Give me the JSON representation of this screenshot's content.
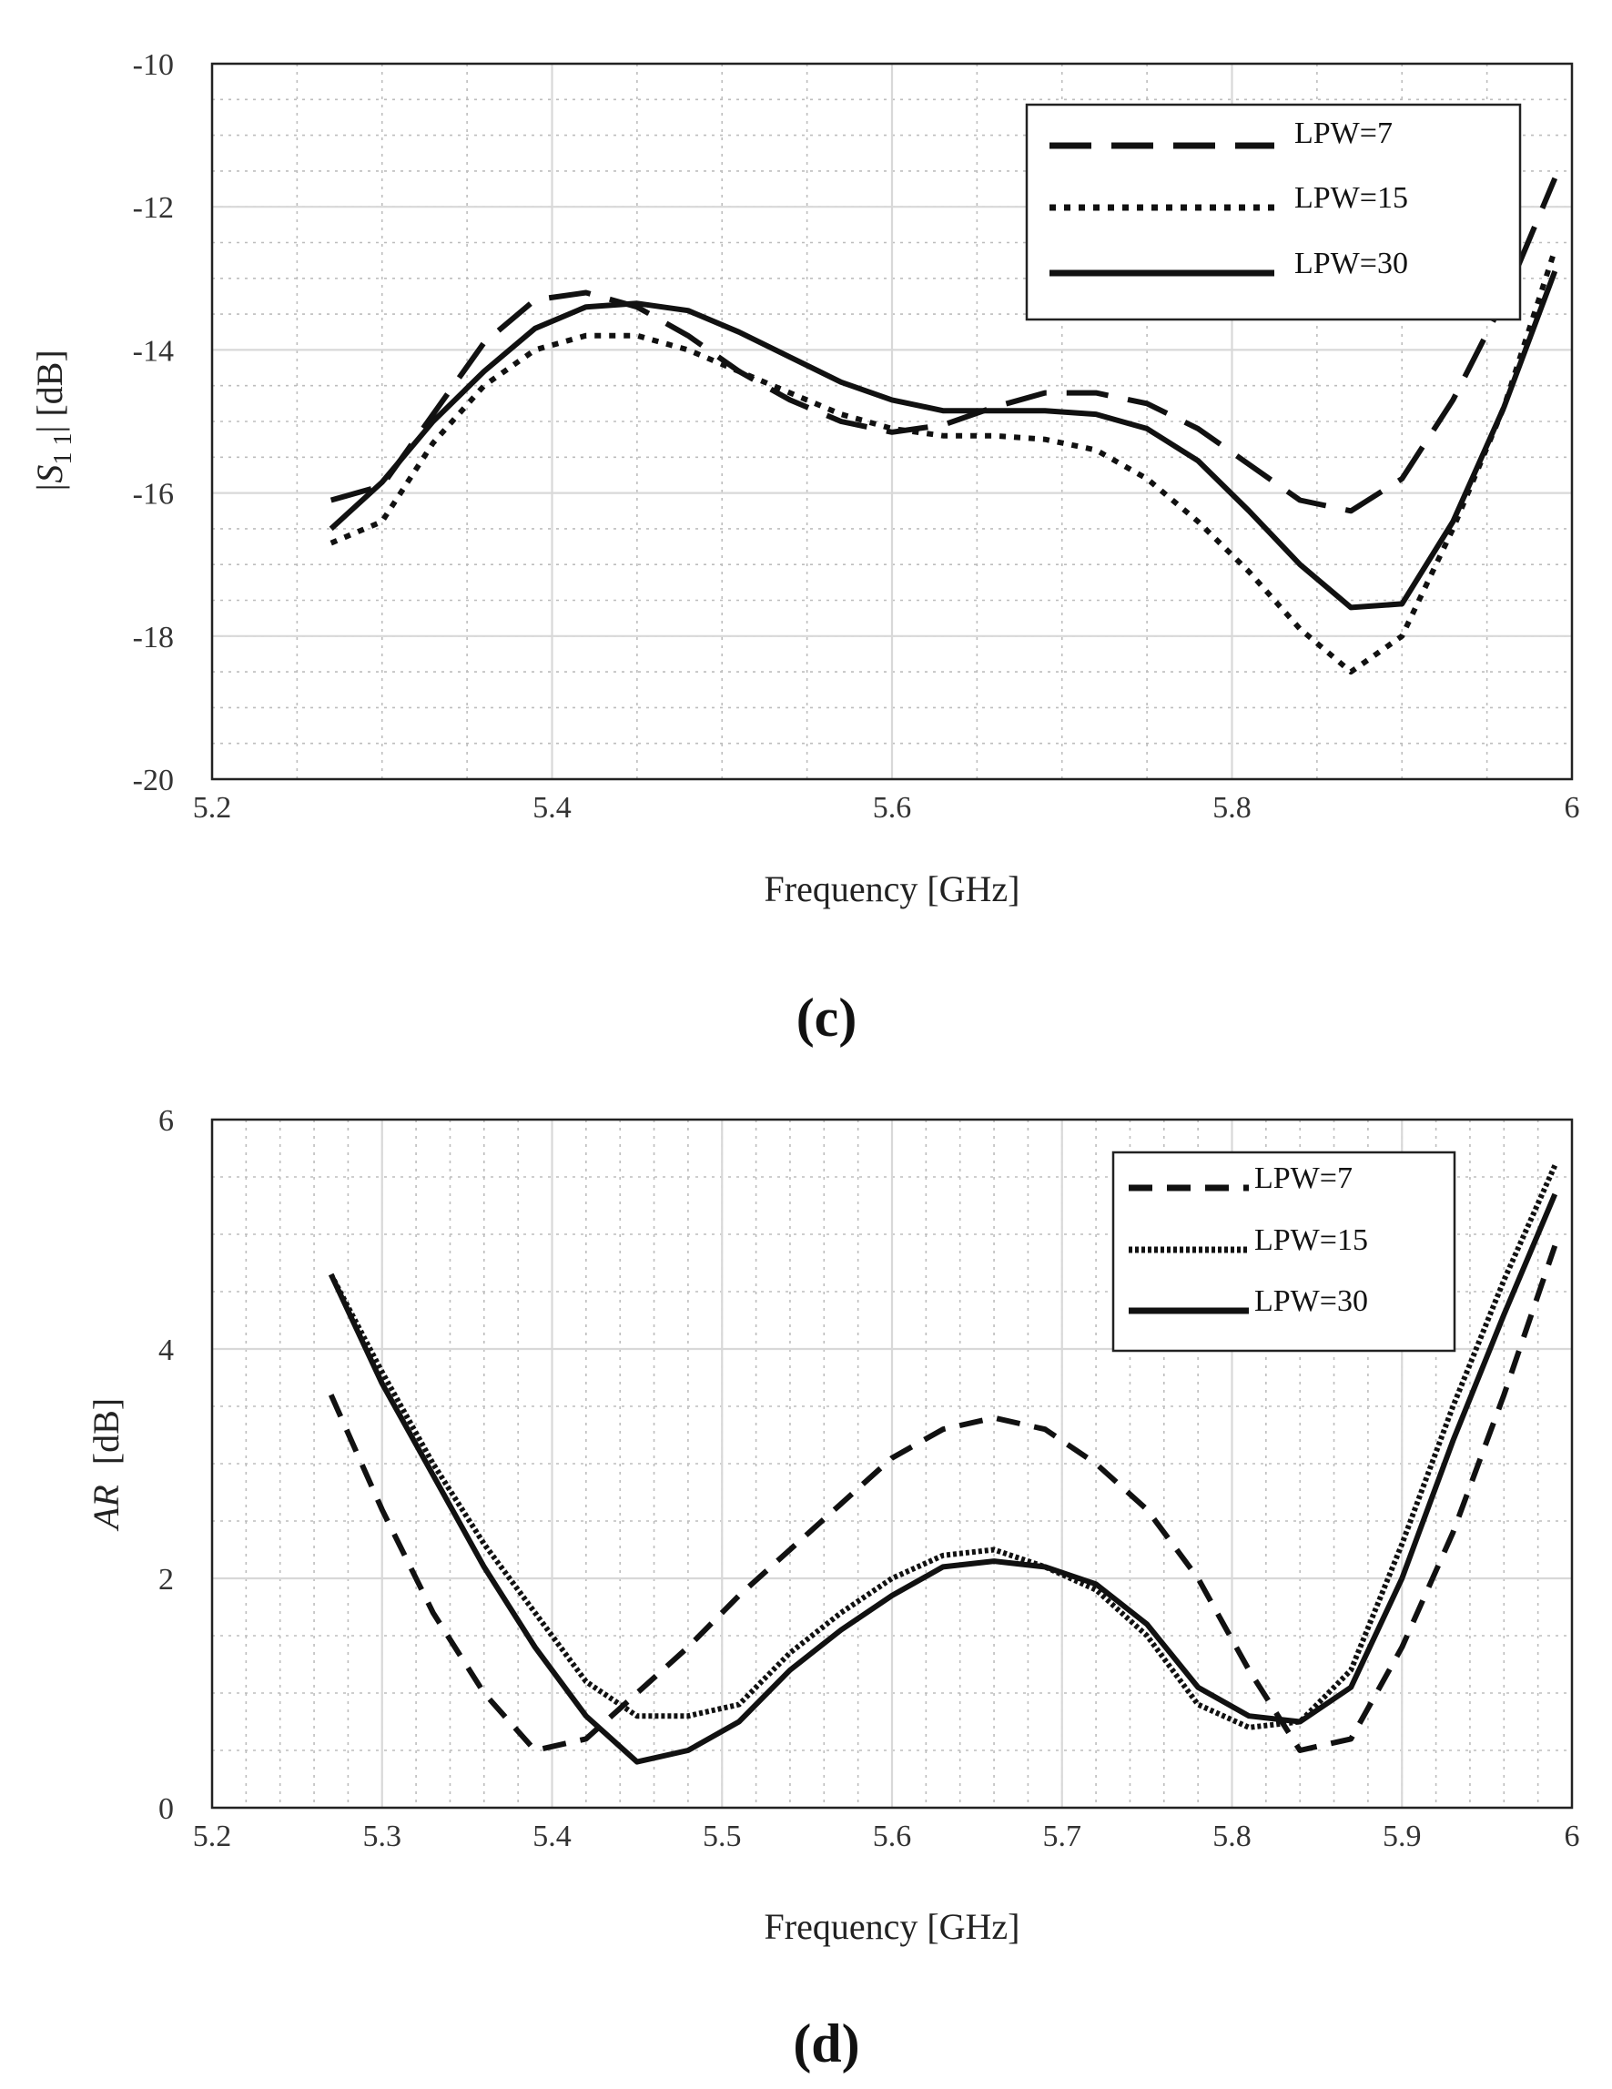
{
  "chart_data": [
    {
      "type": "line",
      "panel_label": "(c)",
      "xlabel": "Frequency [GHz]",
      "ylabel": "|S",
      "ylabel_sub": "1 1",
      "ylabel_tail": "| [dB]",
      "xlim": [
        5.2,
        6.0
      ],
      "ylim": [
        -20,
        -10
      ],
      "xticks": [
        5.2,
        5.4,
        5.6,
        5.8,
        6.0
      ],
      "xtick_labels": [
        "5.2",
        "5.4",
        "5.6",
        "5.8",
        "6"
      ],
      "xminor_step": 0.05,
      "yticks": [
        -20,
        -18,
        -16,
        -14,
        -12,
        -10
      ],
      "ytick_labels": [
        "-20",
        "-18",
        "-16",
        "-14",
        "-12",
        "-10"
      ],
      "yminor_step": 0.5,
      "grid": true,
      "legend_position": "top-right",
      "series": [
        {
          "name": "LPW=7",
          "style": "dashed",
          "x": [
            5.27,
            5.3,
            5.33,
            5.36,
            5.39,
            5.42,
            5.45,
            5.48,
            5.51,
            5.54,
            5.57,
            5.6,
            5.63,
            5.66,
            5.69,
            5.72,
            5.75,
            5.78,
            5.81,
            5.84,
            5.87,
            5.9,
            5.93,
            5.96,
            5.99
          ],
          "y": [
            -16.1,
            -15.9,
            -14.9,
            -13.9,
            -13.3,
            -13.2,
            -13.4,
            -13.8,
            -14.3,
            -14.7,
            -15.0,
            -15.15,
            -15.05,
            -14.8,
            -14.6,
            -14.6,
            -14.75,
            -15.1,
            -15.6,
            -16.1,
            -16.25,
            -15.8,
            -14.7,
            -13.3,
            -11.6
          ]
        },
        {
          "name": "LPW=15",
          "style": "dotted",
          "x": [
            5.27,
            5.3,
            5.33,
            5.36,
            5.39,
            5.42,
            5.45,
            5.48,
            5.51,
            5.54,
            5.57,
            5.6,
            5.63,
            5.66,
            5.69,
            5.72,
            5.75,
            5.78,
            5.81,
            5.84,
            5.87,
            5.9,
            5.93,
            5.96,
            5.99
          ],
          "y": [
            -16.7,
            -16.4,
            -15.3,
            -14.5,
            -14.0,
            -13.8,
            -13.8,
            -14.0,
            -14.3,
            -14.6,
            -14.9,
            -15.1,
            -15.2,
            -15.2,
            -15.25,
            -15.4,
            -15.8,
            -16.4,
            -17.1,
            -17.9,
            -18.5,
            -18.0,
            -16.5,
            -14.8,
            -12.6
          ]
        },
        {
          "name": "LPW=30",
          "style": "solid",
          "x": [
            5.27,
            5.3,
            5.33,
            5.36,
            5.39,
            5.42,
            5.45,
            5.48,
            5.51,
            5.54,
            5.57,
            5.6,
            5.63,
            5.66,
            5.69,
            5.72,
            5.75,
            5.78,
            5.81,
            5.84,
            5.87,
            5.9,
            5.93,
            5.96,
            5.99
          ],
          "y": [
            -16.5,
            -15.85,
            -15.0,
            -14.3,
            -13.7,
            -13.4,
            -13.35,
            -13.45,
            -13.75,
            -14.1,
            -14.45,
            -14.7,
            -14.85,
            -14.85,
            -14.85,
            -14.9,
            -15.1,
            -15.55,
            -16.25,
            -17.0,
            -17.6,
            -17.55,
            -16.4,
            -14.8,
            -12.9
          ]
        }
      ]
    },
    {
      "type": "line",
      "panel_label": "(d)",
      "xlabel": "Frequency [GHz]",
      "ylabel": "AR",
      "ylabel_tail": "[dB]",
      "xlim": [
        5.2,
        6.0
      ],
      "ylim": [
        0,
        6
      ],
      "xticks": [
        5.2,
        5.3,
        5.4,
        5.5,
        5.6,
        5.7,
        5.8,
        5.9,
        6.0
      ],
      "xtick_labels": [
        "5.2",
        "5.3",
        "5.4",
        "5.5",
        "5.6",
        "5.7",
        "5.8",
        "5.9",
        "6"
      ],
      "xminor_step": 0.02,
      "yticks": [
        0,
        2,
        4,
        6
      ],
      "ytick_labels": [
        "0",
        "2",
        "4",
        "6"
      ],
      "yminor_step": 0.5,
      "grid": true,
      "legend_position": "top-right",
      "series": [
        {
          "name": "LPW=7",
          "style": "dashed",
          "x": [
            5.27,
            5.3,
            5.33,
            5.36,
            5.39,
            5.42,
            5.45,
            5.48,
            5.51,
            5.54,
            5.57,
            5.6,
            5.63,
            5.66,
            5.69,
            5.72,
            5.75,
            5.78,
            5.81,
            5.84,
            5.87,
            5.9,
            5.93,
            5.96,
            5.99
          ],
          "y": [
            3.6,
            2.6,
            1.7,
            1.0,
            0.5,
            0.6,
            1.0,
            1.4,
            1.85,
            2.25,
            2.65,
            3.05,
            3.3,
            3.4,
            3.3,
            3.0,
            2.6,
            2.0,
            1.2,
            0.5,
            0.6,
            1.4,
            2.4,
            3.6,
            4.9
          ]
        },
        {
          "name": "LPW=15",
          "style": "dotted",
          "x": [
            5.27,
            5.3,
            5.33,
            5.36,
            5.39,
            5.42,
            5.45,
            5.48,
            5.51,
            5.54,
            5.57,
            5.6,
            5.63,
            5.66,
            5.69,
            5.72,
            5.75,
            5.78,
            5.81,
            5.84,
            5.87,
            5.9,
            5.93,
            5.96,
            5.99
          ],
          "y": [
            4.65,
            3.8,
            3.0,
            2.3,
            1.7,
            1.1,
            0.8,
            0.8,
            0.9,
            1.35,
            1.7,
            2.0,
            2.2,
            2.25,
            2.1,
            1.9,
            1.5,
            0.9,
            0.7,
            0.75,
            1.2,
            2.3,
            3.5,
            4.6,
            5.6
          ]
        },
        {
          "name": "LPW=30",
          "style": "solid",
          "x": [
            5.27,
            5.3,
            5.33,
            5.36,
            5.39,
            5.42,
            5.45,
            5.48,
            5.51,
            5.54,
            5.57,
            5.6,
            5.63,
            5.66,
            5.69,
            5.72,
            5.75,
            5.78,
            5.81,
            5.84,
            5.87,
            5.9,
            5.93,
            5.96,
            5.99
          ],
          "y": [
            4.65,
            3.7,
            2.9,
            2.1,
            1.4,
            0.8,
            0.4,
            0.5,
            0.75,
            1.2,
            1.55,
            1.85,
            2.1,
            2.15,
            2.1,
            1.95,
            1.6,
            1.05,
            0.8,
            0.75,
            1.05,
            2.0,
            3.2,
            4.3,
            5.35
          ]
        }
      ]
    }
  ]
}
